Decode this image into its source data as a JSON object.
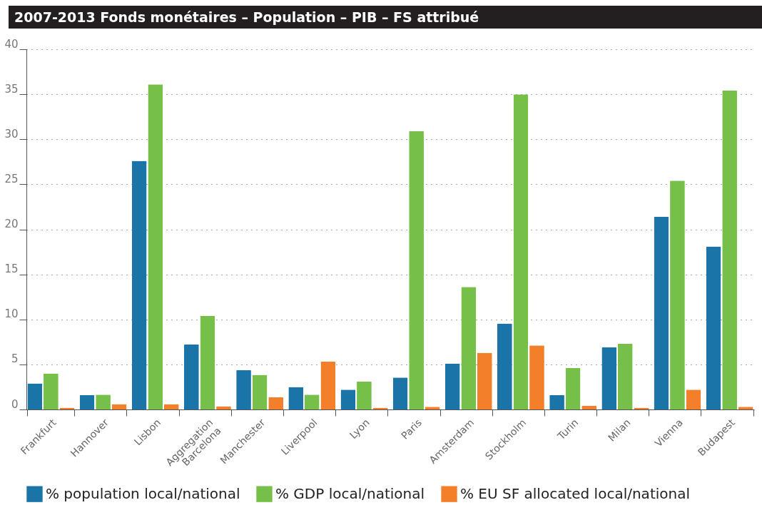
{
  "chart_data": {
    "type": "bar",
    "title": "2007-2013 Fonds monétaires – Population – PIB – FS attribué",
    "categories": [
      "Frankfurt",
      "Hannover",
      "Lisbon",
      "Aggregation Barcelona",
      "Manchester",
      "Liverpool",
      "Lyon",
      "Paris",
      "Amsterdam",
      "Stockholm",
      "Turin",
      "Milan",
      "Vienna",
      "Budapest"
    ],
    "series": [
      {
        "name": "% population local/national",
        "color": "#1b74a8",
        "values": [
          2.9,
          1.6,
          27.6,
          7.2,
          4.35,
          2.5,
          2.2,
          3.55,
          5.1,
          9.55,
          1.6,
          6.9,
          21.4,
          18.1
        ]
      },
      {
        "name": "% GDP local/national",
        "color": "#76c04a",
        "values": [
          4.0,
          1.65,
          36.1,
          10.4,
          3.85,
          1.65,
          3.1,
          30.9,
          13.6,
          35.0,
          4.6,
          7.3,
          25.4,
          35.4
        ]
      },
      {
        "name": "% EU SF allocated local/national",
        "color": "#f47f2a",
        "values": [
          0.2,
          0.6,
          0.6,
          0.35,
          1.35,
          5.3,
          0.2,
          0.3,
          6.3,
          7.1,
          0.4,
          0.2,
          2.2,
          0.3
        ]
      }
    ],
    "ylim": [
      0,
      40
    ],
    "yticks": [
      0,
      5,
      10,
      15,
      20,
      25,
      30,
      35,
      40
    ],
    "grid": "y",
    "legend": "bottom"
  }
}
